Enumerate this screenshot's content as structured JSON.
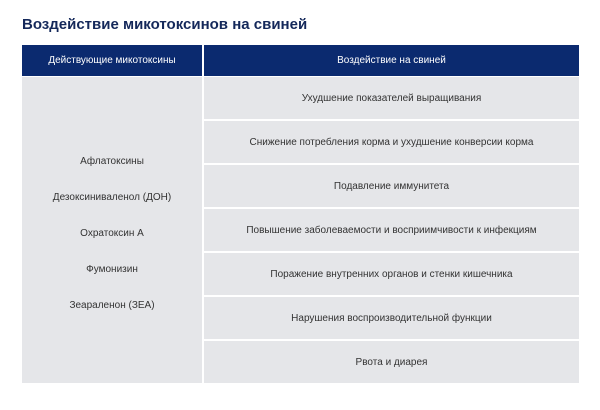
{
  "title": "Воздействие микотоксинов на свиней",
  "table": {
    "headers": [
      "Действующие микотоксины",
      "Воздействие на свиней"
    ],
    "mycotoxins": [
      "Афлатоксины",
      "Дезоксиниваленол (ДОН)",
      "Охратоксин А",
      "Фумонизин",
      "Зеараленон (ЗЕА)"
    ],
    "effects": [
      "Ухудшение показателей выращивания",
      "Снижение потребления корма и ухудшение конверсии корма",
      "Подавление иммунитета",
      "Повышение заболеваемости и восприимчивости к инфекциям",
      "Поражение внутренних органов и стенки кишечника",
      "Нарушения воспроизводительной функции",
      "Рвота и диарея"
    ],
    "header_color": "#0b2a6f",
    "cell_color": "#e5e6e9"
  }
}
